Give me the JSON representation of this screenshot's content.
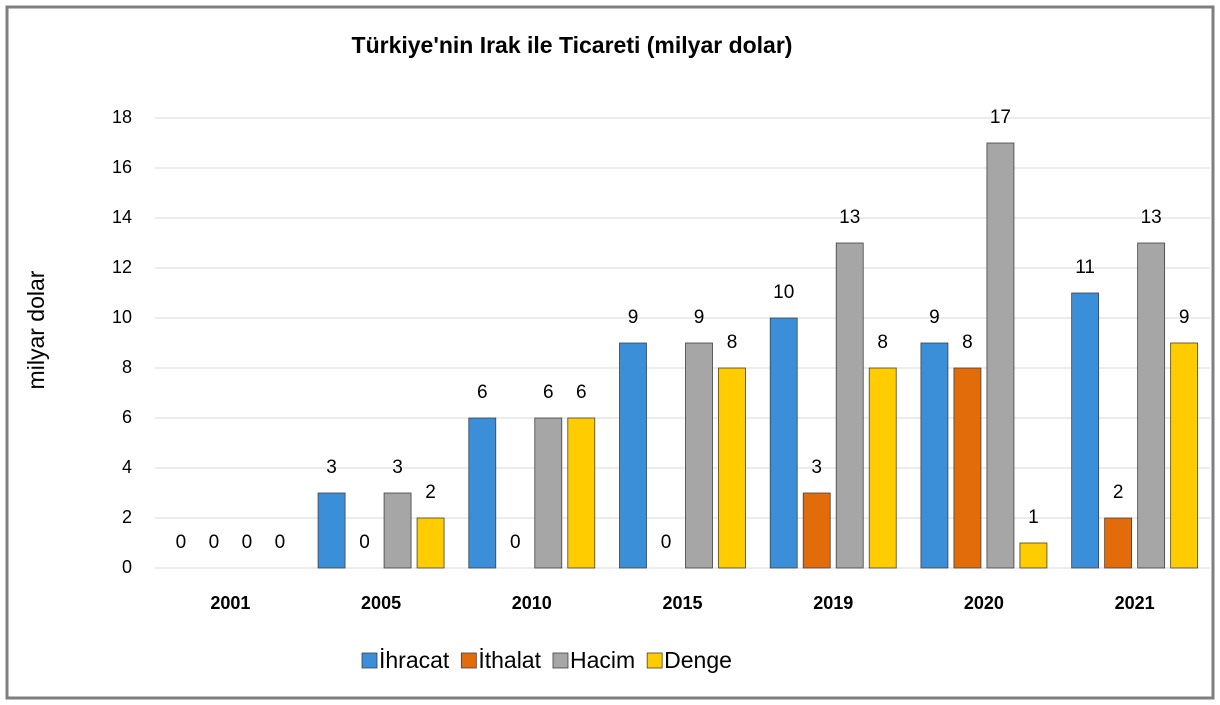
{
  "chart_data": {
    "type": "bar",
    "title": "Türkiye'nin Irak ile Ticareti (milyar dolar)",
    "y_label": "milyar dolar",
    "categories": [
      "2001",
      "2005",
      "2010",
      "2015",
      "2019",
      "2020",
      "2021"
    ],
    "series": [
      {
        "name": "İhracat",
        "color": "#3b8fd9",
        "values": [
          0,
          3,
          6,
          9,
          10,
          9,
          11
        ]
      },
      {
        "name": "İthalat",
        "color": "#e36c0a",
        "values": [
          0,
          0,
          0,
          0,
          3,
          8,
          2
        ]
      },
      {
        "name": "Hacim",
        "color": "#a6a6a6",
        "values": [
          0,
          3,
          6,
          9,
          13,
          17,
          13
        ]
      },
      {
        "name": "Denge",
        "color": "#ffcc00",
        "values": [
          0,
          2,
          6,
          8,
          8,
          1,
          9
        ]
      }
    ],
    "ylim": [
      0,
      18
    ],
    "yticks": [
      0,
      2,
      4,
      6,
      8,
      10,
      12,
      14,
      16,
      18
    ],
    "grid": true,
    "legend": "bottom"
  }
}
